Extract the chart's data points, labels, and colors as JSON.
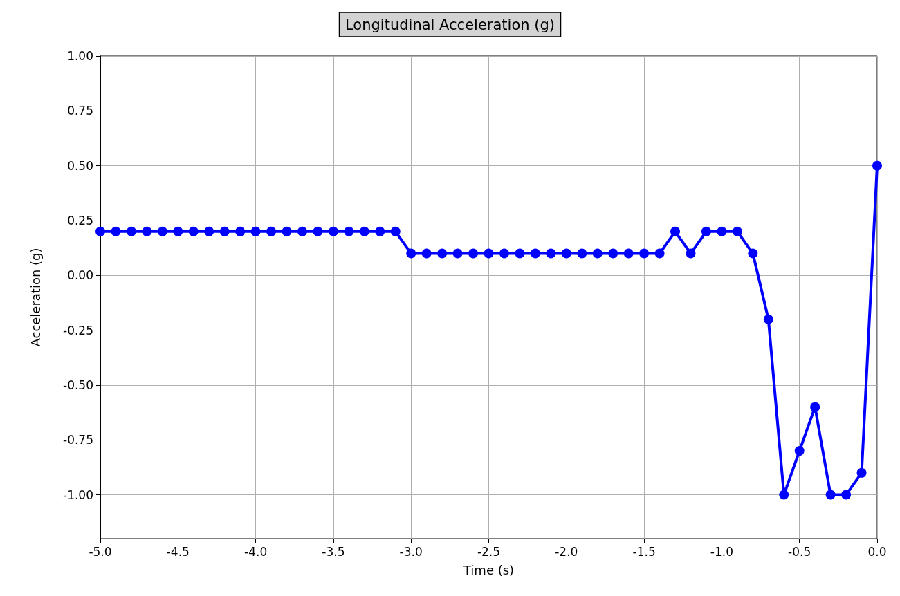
{
  "chart_data": {
    "type": "line",
    "title": "Longitudinal Acceleration (g)",
    "xlabel": "Time (s)",
    "ylabel": "Acceleration (g)",
    "x": [
      -5.0,
      -4.9,
      -4.8,
      -4.7,
      -4.6,
      -4.5,
      -4.4,
      -4.3,
      -4.2,
      -4.1,
      -4.0,
      -3.9,
      -3.8,
      -3.7,
      -3.6,
      -3.5,
      -3.4,
      -3.3,
      -3.2,
      -3.1,
      -3.0,
      -2.9,
      -2.8,
      -2.7,
      -2.6,
      -2.5,
      -2.4,
      -2.3,
      -2.2,
      -2.1,
      -2.0,
      -1.9,
      -1.8,
      -1.7,
      -1.6,
      -1.5,
      -1.4,
      -1.3,
      -1.2,
      -1.1,
      -1.0,
      -0.9,
      -0.8,
      -0.7,
      -0.6,
      -0.5,
      -0.4,
      -0.3,
      -0.2,
      -0.1,
      0.0
    ],
    "series": [
      {
        "color": "#0000ff",
        "values": [
          0.2,
          0.2,
          0.2,
          0.2,
          0.2,
          0.2,
          0.2,
          0.2,
          0.2,
          0.2,
          0.2,
          0.2,
          0.2,
          0.2,
          0.2,
          0.2,
          0.2,
          0.2,
          0.2,
          0.2,
          0.1,
          0.1,
          0.1,
          0.1,
          0.1,
          0.1,
          0.1,
          0.1,
          0.1,
          0.1,
          0.1,
          0.1,
          0.1,
          0.1,
          0.1,
          0.1,
          0.1,
          0.2,
          0.1,
          0.2,
          0.2,
          0.2,
          0.1,
          -0.2,
          -1.0,
          -0.8,
          -0.6,
          -1.0,
          -1.0,
          -0.9,
          0.5
        ]
      }
    ],
    "xlim": [
      -5.0,
      0.0
    ],
    "xticks": [
      {
        "value": -5.0,
        "label": "-5.0"
      },
      {
        "value": -4.5,
        "label": "-4.5"
      },
      {
        "value": -4.0,
        "label": "-4.0"
      },
      {
        "value": -3.5,
        "label": "-3.5"
      },
      {
        "value": -3.0,
        "label": "-3.0"
      },
      {
        "value": -2.5,
        "label": "-2.5"
      },
      {
        "value": -2.0,
        "label": "-2.0"
      },
      {
        "value": -1.5,
        "label": "-1.5"
      },
      {
        "value": -1.0,
        "label": "-1.0"
      },
      {
        "value": -0.5,
        "label": "-0.5"
      },
      {
        "value": 0.0,
        "label": "0.0"
      }
    ],
    "ylim": [
      -1.2,
      1.0
    ],
    "yticks": [
      {
        "value": -1.0,
        "label": "-1.00"
      },
      {
        "value": -0.75,
        "label": "-0.75"
      },
      {
        "value": -0.5,
        "label": "-0.50"
      },
      {
        "value": -0.25,
        "label": "-0.25"
      },
      {
        "value": 0.0,
        "label": "0.00"
      },
      {
        "value": 0.25,
        "label": "0.25"
      },
      {
        "value": 0.5,
        "label": "0.50"
      },
      {
        "value": 0.75,
        "label": "0.75"
      },
      {
        "value": 1.0,
        "label": "1.00"
      }
    ],
    "grid": true,
    "marker": "circle",
    "line_style": "solid"
  }
}
